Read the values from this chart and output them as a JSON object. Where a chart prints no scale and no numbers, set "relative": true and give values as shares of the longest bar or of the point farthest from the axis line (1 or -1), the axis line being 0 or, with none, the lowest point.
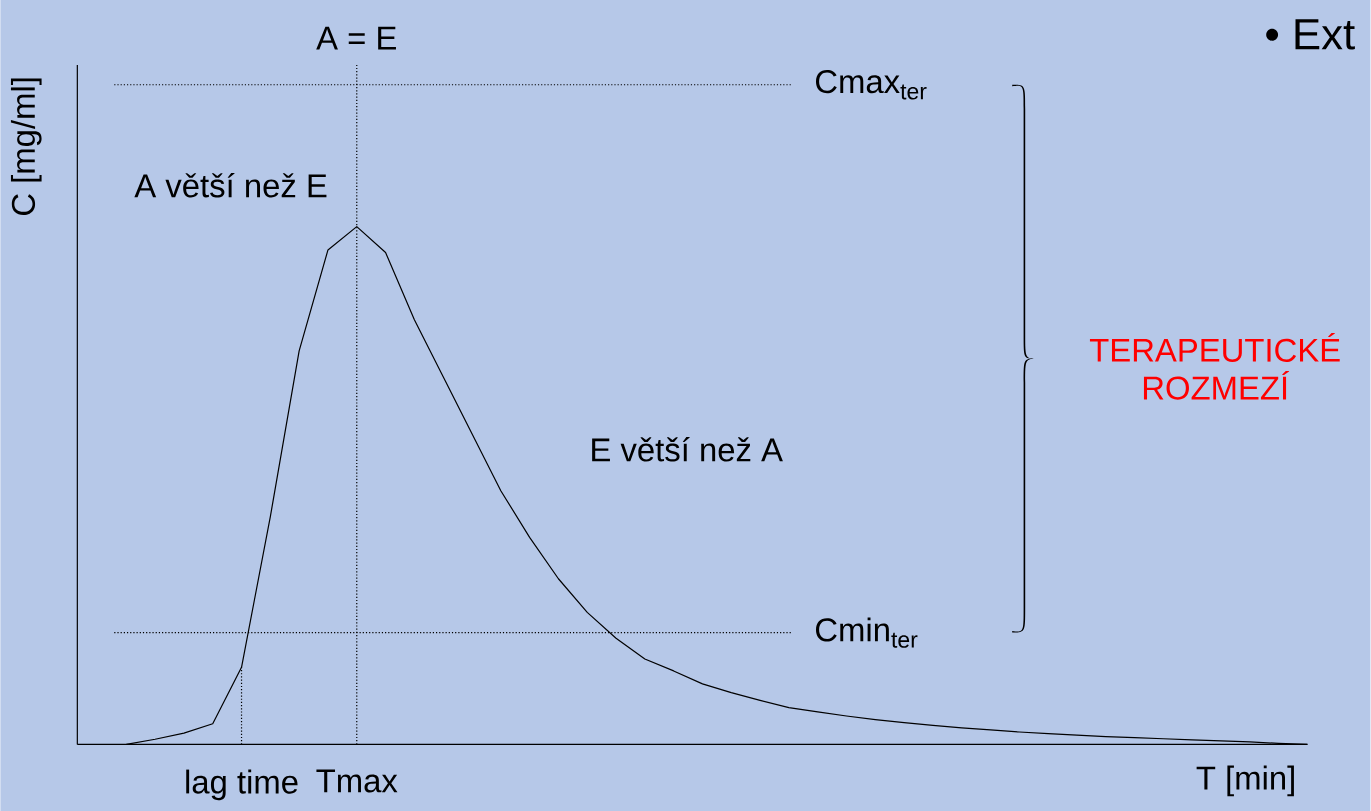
{
  "chart_data": {
    "type": "line",
    "relative": true,
    "xlabel": "T [min]",
    "ylabel": "C [mg/ml]",
    "categories": [
      null,
      null,
      null,
      null,
      "lag time",
      null,
      null,
      null,
      "Tmax",
      null,
      null,
      null,
      null,
      null,
      null,
      null,
      null,
      null,
      null,
      null,
      null,
      null,
      null,
      null,
      null,
      null,
      null,
      null,
      null,
      null,
      null,
      null,
      null,
      null,
      null,
      null,
      null,
      null,
      null,
      null,
      null,
      null
    ],
    "marker": "none",
    "line_style": "solid",
    "grid": false,
    "series": [
      {
        "color": "#000000",
        "values": [
          0,
          0.01,
          0.022,
          0.04,
          0.149,
          0.44,
          0.76,
          0.955,
          1,
          0.95,
          0.82,
          0.71,
          0.6,
          0.49,
          0.4,
          0.32,
          0.255,
          0.205,
          0.165,
          0.142,
          0.117,
          0.1,
          0.085,
          0.071,
          0.063,
          0.055,
          0.048,
          0.042,
          0.037,
          0.032,
          0.028,
          0.024,
          0.021,
          0.018,
          0.015,
          0.013,
          0.011,
          0.009,
          0.007,
          0.005,
          0.002,
          0
        ]
      }
    ],
    "ref_lines": [
      {
        "axis": "y",
        "value": 1.274,
        "label": "Cmax$_{ter}$",
        "line_style": "dotted"
      },
      {
        "axis": "y",
        "value": 0.216,
        "label": "Cmin$_{ter}$",
        "line_style": "dotted"
      },
      {
        "axis": "x",
        "value": "Tmax",
        "label": "A = E",
        "line_style": "dotted"
      },
      {
        "axis": "x",
        "value": "lag time",
        "line_style": "dotted"
      }
    ],
    "annotations": [
      "A větší než E",
      "E větší než A",
      "• Ext",
      "TERAPEUTICKÉ ROZMEZÍ"
    ]
  }
}
